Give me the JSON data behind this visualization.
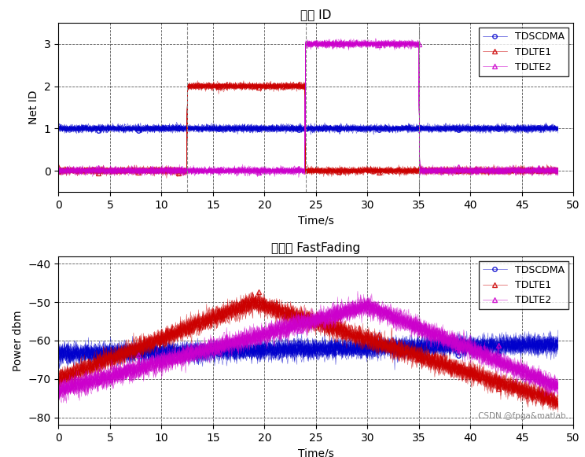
{
  "title1": "网络 ID",
  "title2": "不考虑 FastFading",
  "xlabel": "Time/s",
  "ylabel1": "Net ID",
  "ylabel2": "Power dbm",
  "xlim": [
    0,
    50
  ],
  "ylim1": [
    -0.5,
    3.5
  ],
  "ylim2": [
    -82,
    -38
  ],
  "xticks": [
    0,
    5,
    10,
    15,
    20,
    25,
    30,
    35,
    40,
    45,
    50
  ],
  "yticks1": [
    0,
    1,
    2,
    3
  ],
  "yticks2": [
    -80,
    -70,
    -60,
    -50,
    -40
  ],
  "watermark": "CSDN @fpga&matlab",
  "colors": {
    "TDSCDMA": "#0000CC",
    "TDLTE1": "#CC0000",
    "TDLTE2": "#CC00CC"
  },
  "n_runs": 30,
  "n_points": 500,
  "t_max": 48.5,
  "t_switch1_start": 12.5,
  "t_switch1_end": 24.0,
  "t_switch2_start": 24.0,
  "t_switch2_end": 35.0,
  "noise_std_id": 0.04,
  "noise_std_pwr": 1.2
}
